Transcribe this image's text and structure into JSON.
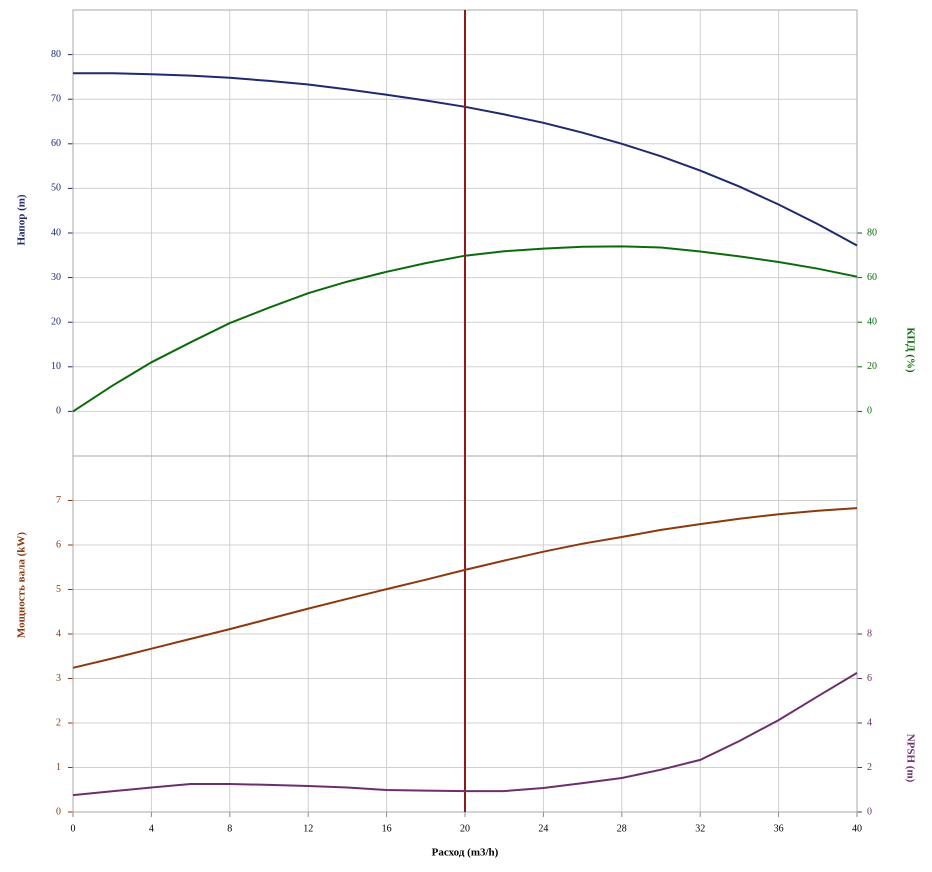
{
  "chart_data": [
    {
      "type": "line",
      "ylabel": "Напор (m)",
      "y2label": "КПД (%)",
      "x": [
        0,
        2,
        4,
        6,
        8,
        10,
        12,
        14,
        16,
        18,
        20,
        22,
        24,
        26,
        28,
        30,
        32,
        34,
        36,
        38,
        40
      ],
      "ylim": [
        -10,
        90
      ],
      "yticks": [
        0,
        10,
        20,
        30,
        40,
        50,
        60,
        70,
        80
      ],
      "y2lim": [
        -20,
        180
      ],
      "y2ticks": [
        0,
        20,
        40,
        60,
        80
      ],
      "ycolor": "#1f2a6e",
      "y2color": "#0b6b0b",
      "series": [
        {
          "color": "#1f2a6e",
          "values": [
            75.8,
            75.8,
            75.6,
            75.3,
            74.8,
            74.1,
            73.3,
            72.2,
            71.0,
            69.7,
            68.3,
            66.6,
            64.7,
            62.5,
            60.0,
            57.2,
            54.0,
            50.4,
            46.4,
            42.0,
            37.2
          ]
        },
        {
          "color": "#0b6b0b",
          "axis": "y2",
          "values": [
            0,
            11.5,
            22,
            31,
            39.6,
            46.5,
            53,
            58.2,
            62.6,
            66.5,
            69.8,
            71.8,
            73,
            73.8,
            74,
            73.5,
            71.7,
            69.5,
            67,
            64,
            60.4
          ]
        }
      ]
    },
    {
      "type": "line",
      "ylabel": "Мощность вала (kW)",
      "y2label": "NPSH (m)",
      "xlabel": "Расход (m3/h)",
      "x": [
        0,
        2,
        4,
        6,
        8,
        10,
        12,
        14,
        16,
        18,
        20,
        22,
        24,
        26,
        28,
        30,
        32,
        34,
        36,
        38,
        40
      ],
      "xlim": [
        0,
        40
      ],
      "xticks": [
        0,
        4,
        8,
        12,
        16,
        20,
        24,
        28,
        32,
        36,
        40
      ],
      "ylim": [
        0,
        8
      ],
      "yticks": [
        0,
        1,
        2,
        3,
        4,
        5,
        6,
        7
      ],
      "y2lim": [
        0,
        16
      ],
      "y2ticks": [
        0,
        2,
        4,
        6,
        8
      ],
      "ycolor": "#8b3a0f",
      "y2color": "#6b2f6b",
      "vline": 20,
      "vline_color": "#8b1a1a",
      "series": [
        {
          "color": "#8b3a0f",
          "values": [
            3.24,
            3.45,
            3.67,
            3.89,
            4.11,
            4.34,
            4.57,
            4.79,
            5.01,
            5.22,
            5.44,
            5.65,
            5.85,
            6.03,
            6.18,
            6.34,
            6.47,
            6.59,
            6.69,
            6.77,
            6.83
          ]
        },
        {
          "color": "#6b2f6b",
          "axis": "y2",
          "values": [
            0.76,
            0.93,
            1.1,
            1.26,
            1.26,
            1.22,
            1.17,
            1.1,
            0.99,
            0.96,
            0.94,
            0.94,
            1.08,
            1.3,
            1.53,
            1.9,
            2.34,
            3.19,
            4.13,
            5.2,
            6.25
          ]
        }
      ]
    }
  ]
}
